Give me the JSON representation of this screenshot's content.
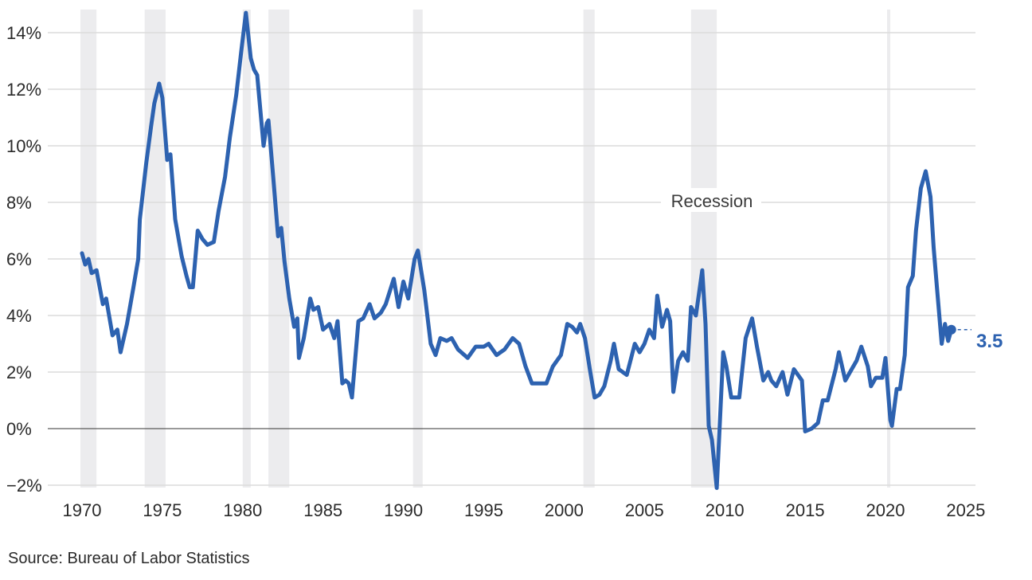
{
  "chart_data": {
    "type": "line",
    "title": "",
    "xlabel": "",
    "ylabel": "",
    "xlim": [
      1970,
      2025
    ],
    "ylim": [
      -2,
      14
    ],
    "grid": "horizontal",
    "x_ticks": [
      "1970",
      "1975",
      "1980",
      "1985",
      "1990",
      "1995",
      "2000",
      "2005",
      "2010",
      "2015",
      "2020",
      "2025"
    ],
    "y_ticks": [
      {
        "v": 14,
        "label": "14%"
      },
      {
        "v": 12,
        "label": "12%"
      },
      {
        "v": 10,
        "label": "10%"
      },
      {
        "v": 8,
        "label": "8%"
      },
      {
        "v": 6,
        "label": "6%"
      },
      {
        "v": 4,
        "label": "4%"
      },
      {
        "v": 2,
        "label": "2%"
      },
      {
        "v": 0,
        "label": "0%"
      },
      {
        "v": -2,
        "label": "−2%"
      }
    ],
    "recession_label": "Recession",
    "recessions": [
      [
        1969.9,
        1970.9
      ],
      [
        1973.9,
        1975.2
      ],
      [
        1980.0,
        1980.5
      ],
      [
        1981.6,
        1982.9
      ],
      [
        1990.6,
        1991.2
      ],
      [
        2001.2,
        2001.9
      ],
      [
        2007.9,
        2009.5
      ],
      [
        2020.1,
        2020.3
      ]
    ],
    "end_label": "3.5",
    "colors": {
      "line": "#2d62b0",
      "recession": "#ececee",
      "grid": "#dcdcdc",
      "zero": "#333333"
    },
    "series": [
      {
        "points": [
          [
            1970.0,
            6.2
          ],
          [
            1970.2,
            5.8
          ],
          [
            1970.4,
            6.0
          ],
          [
            1970.6,
            5.5
          ],
          [
            1970.9,
            5.6
          ],
          [
            1971.3,
            4.4
          ],
          [
            1971.5,
            4.6
          ],
          [
            1971.9,
            3.3
          ],
          [
            1972.2,
            3.5
          ],
          [
            1972.4,
            2.7
          ],
          [
            1972.8,
            3.7
          ],
          [
            1973.2,
            5.0
          ],
          [
            1973.5,
            6.0
          ],
          [
            1973.6,
            7.4
          ],
          [
            1974.0,
            9.4
          ],
          [
            1974.3,
            10.7
          ],
          [
            1974.5,
            11.5
          ],
          [
            1974.8,
            12.2
          ],
          [
            1975.0,
            11.7
          ],
          [
            1975.3,
            9.5
          ],
          [
            1975.5,
            9.7
          ],
          [
            1975.8,
            7.4
          ],
          [
            1976.2,
            6.1
          ],
          [
            1976.5,
            5.4
          ],
          [
            1976.7,
            5.0
          ],
          [
            1976.9,
            5.0
          ],
          [
            1977.2,
            7.0
          ],
          [
            1977.5,
            6.7
          ],
          [
            1977.8,
            6.5
          ],
          [
            1978.2,
            6.6
          ],
          [
            1978.5,
            7.7
          ],
          [
            1978.9,
            8.9
          ],
          [
            1979.2,
            10.3
          ],
          [
            1979.6,
            11.8
          ],
          [
            1979.9,
            13.3
          ],
          [
            1980.2,
            14.7
          ],
          [
            1980.5,
            13.1
          ],
          [
            1980.7,
            12.7
          ],
          [
            1980.9,
            12.5
          ],
          [
            1981.3,
            10.0
          ],
          [
            1981.5,
            10.8
          ],
          [
            1981.6,
            10.9
          ],
          [
            1981.9,
            8.9
          ],
          [
            1982.2,
            6.8
          ],
          [
            1982.4,
            7.1
          ],
          [
            1982.6,
            5.9
          ],
          [
            1982.9,
            4.6
          ],
          [
            1983.2,
            3.6
          ],
          [
            1983.4,
            3.9
          ],
          [
            1983.5,
            2.5
          ],
          [
            1983.8,
            3.2
          ],
          [
            1984.2,
            4.6
          ],
          [
            1984.4,
            4.2
          ],
          [
            1984.7,
            4.3
          ],
          [
            1985.0,
            3.5
          ],
          [
            1985.4,
            3.7
          ],
          [
            1985.7,
            3.2
          ],
          [
            1985.9,
            3.8
          ],
          [
            1986.2,
            1.6
          ],
          [
            1986.4,
            1.7
          ],
          [
            1986.6,
            1.6
          ],
          [
            1986.8,
            1.1
          ],
          [
            1987.2,
            3.8
          ],
          [
            1987.5,
            3.9
          ],
          [
            1987.9,
            4.4
          ],
          [
            1988.2,
            3.9
          ],
          [
            1988.6,
            4.1
          ],
          [
            1988.9,
            4.4
          ],
          [
            1989.4,
            5.3
          ],
          [
            1989.7,
            4.3
          ],
          [
            1990.0,
            5.2
          ],
          [
            1990.3,
            4.6
          ],
          [
            1990.7,
            6.0
          ],
          [
            1990.9,
            6.3
          ],
          [
            1991.3,
            4.9
          ],
          [
            1991.7,
            3.0
          ],
          [
            1992.0,
            2.6
          ],
          [
            1992.3,
            3.2
          ],
          [
            1992.7,
            3.1
          ],
          [
            1993.0,
            3.2
          ],
          [
            1993.4,
            2.8
          ],
          [
            1994.0,
            2.5
          ],
          [
            1994.5,
            2.9
          ],
          [
            1995.0,
            2.9
          ],
          [
            1995.3,
            3.0
          ],
          [
            1995.8,
            2.6
          ],
          [
            1996.3,
            2.8
          ],
          [
            1996.8,
            3.2
          ],
          [
            1997.2,
            3.0
          ],
          [
            1997.6,
            2.2
          ],
          [
            1998.0,
            1.6
          ],
          [
            1998.5,
            1.6
          ],
          [
            1998.9,
            1.6
          ],
          [
            1999.3,
            2.2
          ],
          [
            1999.8,
            2.6
          ],
          [
            2000.2,
            3.7
          ],
          [
            2000.5,
            3.6
          ],
          [
            2000.8,
            3.4
          ],
          [
            2001.0,
            3.7
          ],
          [
            2001.3,
            3.2
          ],
          [
            2001.6,
            2.1
          ],
          [
            2001.9,
            1.1
          ],
          [
            2002.2,
            1.2
          ],
          [
            2002.5,
            1.5
          ],
          [
            2002.9,
            2.4
          ],
          [
            2003.1,
            3.0
          ],
          [
            2003.4,
            2.1
          ],
          [
            2003.9,
            1.9
          ],
          [
            2004.4,
            3.0
          ],
          [
            2004.7,
            2.7
          ],
          [
            2005.0,
            3.0
          ],
          [
            2005.3,
            3.5
          ],
          [
            2005.6,
            3.2
          ],
          [
            2005.8,
            4.7
          ],
          [
            2006.1,
            3.6
          ],
          [
            2006.4,
            4.2
          ],
          [
            2006.6,
            3.8
          ],
          [
            2006.8,
            1.3
          ],
          [
            2007.1,
            2.4
          ],
          [
            2007.4,
            2.7
          ],
          [
            2007.7,
            2.4
          ],
          [
            2007.9,
            4.3
          ],
          [
            2008.2,
            4.0
          ],
          [
            2008.6,
            5.6
          ],
          [
            2008.8,
            3.7
          ],
          [
            2009.0,
            0.1
          ],
          [
            2009.2,
            -0.4
          ],
          [
            2009.5,
            -2.1
          ],
          [
            2009.9,
            2.7
          ],
          [
            2010.1,
            2.2
          ],
          [
            2010.4,
            1.1
          ],
          [
            2010.9,
            1.1
          ],
          [
            2011.3,
            3.2
          ],
          [
            2011.7,
            3.9
          ],
          [
            2012.0,
            2.9
          ],
          [
            2012.4,
            1.7
          ],
          [
            2012.7,
            2.0
          ],
          [
            2012.9,
            1.7
          ],
          [
            2013.2,
            1.5
          ],
          [
            2013.6,
            2.0
          ],
          [
            2013.9,
            1.2
          ],
          [
            2014.3,
            2.1
          ],
          [
            2014.8,
            1.7
          ],
          [
            2015.0,
            -0.1
          ],
          [
            2015.4,
            0.0
          ],
          [
            2015.8,
            0.2
          ],
          [
            2016.1,
            1.0
          ],
          [
            2016.4,
            1.0
          ],
          [
            2016.9,
            2.1
          ],
          [
            2017.1,
            2.7
          ],
          [
            2017.5,
            1.7
          ],
          [
            2017.9,
            2.1
          ],
          [
            2018.2,
            2.4
          ],
          [
            2018.5,
            2.9
          ],
          [
            2018.9,
            2.2
          ],
          [
            2019.1,
            1.5
          ],
          [
            2019.4,
            1.8
          ],
          [
            2019.8,
            1.8
          ],
          [
            2020.0,
            2.5
          ],
          [
            2020.3,
            0.3
          ],
          [
            2020.4,
            0.1
          ],
          [
            2020.7,
            1.4
          ],
          [
            2020.9,
            1.4
          ],
          [
            2021.2,
            2.6
          ],
          [
            2021.4,
            5.0
          ],
          [
            2021.7,
            5.4
          ],
          [
            2021.9,
            7.0
          ],
          [
            2022.2,
            8.5
          ],
          [
            2022.5,
            9.1
          ],
          [
            2022.8,
            8.2
          ],
          [
            2023.0,
            6.4
          ],
          [
            2023.2,
            5.0
          ],
          [
            2023.5,
            3.0
          ],
          [
            2023.7,
            3.7
          ],
          [
            2023.9,
            3.1
          ],
          [
            2024.1,
            3.5
          ]
        ]
      }
    ]
  },
  "source": "Source: Bureau of Labor Statistics"
}
